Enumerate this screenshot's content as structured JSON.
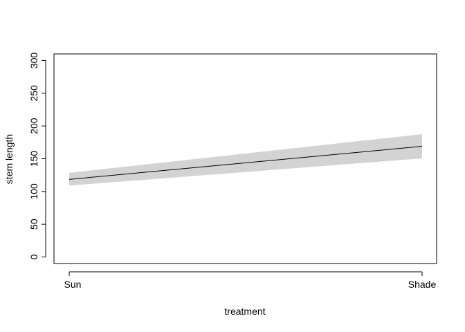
{
  "chart_data": {
    "type": "line",
    "title": "",
    "xlabel": "treatment",
    "ylabel": "stem length",
    "categories": [
      "Sun",
      "Shade"
    ],
    "y_ticks": [
      0,
      50,
      100,
      150,
      200,
      250,
      300
    ],
    "ylim": [
      -10,
      310
    ],
    "grid": false,
    "series": [
      {
        "values": [
          118.5,
          169
        ],
        "lower": [
          109,
          150.5
        ],
        "upper": [
          128.5,
          187.5
        ]
      }
    ],
    "colors": {
      "line": "#000000",
      "band": "#d3d3d3"
    }
  }
}
